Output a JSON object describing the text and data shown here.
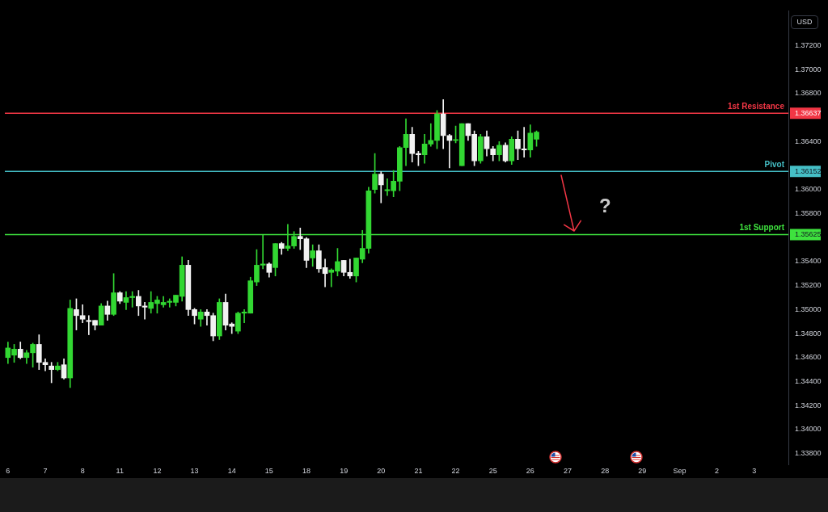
{
  "chart_data": {
    "type": "candlestick",
    "ylabel": "USD",
    "categories": [
      "6",
      null,
      null,
      null,
      null,
      null,
      "7",
      null,
      null,
      null,
      null,
      null,
      "8",
      null,
      null,
      null,
      null,
      null,
      "11",
      null,
      null,
      null,
      null,
      null,
      "12",
      null,
      null,
      null,
      null,
      null,
      "13",
      null,
      null,
      null,
      null,
      null,
      "14",
      null,
      null,
      null,
      null,
      null,
      "15",
      null,
      null,
      null,
      null,
      null,
      "18",
      null,
      null,
      null,
      null,
      null,
      "19",
      null,
      null,
      null,
      null,
      null,
      "20",
      null,
      null,
      null,
      null,
      null,
      "21",
      null,
      null,
      null,
      null,
      null,
      "22",
      null,
      null,
      null,
      null,
      null,
      "25",
      null,
      null,
      null,
      null,
      null,
      "26",
      null,
      null,
      null,
      null,
      null,
      "27",
      null,
      null,
      null,
      null,
      null,
      "28",
      null,
      null,
      null,
      null,
      null,
      "29",
      null,
      null,
      null,
      null,
      null,
      "Sep",
      null,
      null,
      null,
      null,
      null,
      "2",
      null,
      null,
      null,
      null,
      null,
      "3",
      null,
      null,
      null,
      null,
      null
    ],
    "ohlc": [
      [
        1.346,
        1.3473,
        1.3455,
        1.3468
      ],
      [
        1.3462,
        1.3471,
        1.3456,
        1.3467
      ],
      [
        1.3467,
        1.3473,
        1.3459,
        1.346
      ],
      [
        1.346,
        1.3466,
        1.3455,
        1.3464
      ],
      [
        1.3464,
        1.3472,
        1.3452,
        1.3471
      ],
      [
        1.3471,
        1.3479,
        1.345,
        1.3456
      ],
      [
        1.3456,
        1.3459,
        1.3449,
        1.3454
      ],
      [
        1.3453,
        1.3456,
        1.3439,
        1.345
      ],
      [
        1.345,
        1.3456,
        1.3449,
        1.3453
      ],
      [
        1.3454,
        1.3459,
        1.3442,
        1.3443
      ],
      [
        1.3443,
        1.3508,
        1.3435,
        1.3501
      ],
      [
        1.35,
        1.3509,
        1.3483,
        1.3495
      ],
      [
        1.3495,
        1.3504,
        1.3489,
        1.3492
      ],
      [
        1.3491,
        1.3495,
        1.3479,
        1.349
      ],
      [
        1.3491,
        1.3491,
        1.3483,
        1.3487
      ],
      [
        1.3487,
        1.3505,
        1.3487,
        1.3503
      ],
      [
        1.3503,
        1.3507,
        1.3491,
        1.3496
      ],
      [
        1.3496,
        1.353,
        1.3495,
        1.3514
      ],
      [
        1.3514,
        1.3515,
        1.3505,
        1.3507
      ],
      [
        1.3506,
        1.3515,
        1.35,
        1.351
      ],
      [
        1.351,
        1.3515,
        1.3502,
        1.3511
      ],
      [
        1.3511,
        1.3516,
        1.3495,
        1.3503
      ],
      [
        1.3503,
        1.3506,
        1.3492,
        1.3502
      ],
      [
        1.3501,
        1.3515,
        1.3497,
        1.3506
      ],
      [
        1.3505,
        1.3511,
        1.3497,
        1.3508
      ],
      [
        1.3504,
        1.3511,
        1.3502,
        1.3506
      ],
      [
        1.3506,
        1.3509,
        1.3502,
        1.3507
      ],
      [
        1.3506,
        1.3512,
        1.3503,
        1.3512
      ],
      [
        1.3511,
        1.3544,
        1.3507,
        1.3537
      ],
      [
        1.3537,
        1.3541,
        1.3495,
        1.35
      ],
      [
        1.35,
        1.3501,
        1.3488,
        1.3495
      ],
      [
        1.3492,
        1.35,
        1.3486,
        1.3498
      ],
      [
        1.3498,
        1.35,
        1.3487,
        1.3495
      ],
      [
        1.3495,
        1.3497,
        1.3474,
        1.3478
      ],
      [
        1.3478,
        1.3509,
        1.3475,
        1.3506
      ],
      [
        1.3506,
        1.3513,
        1.3483,
        1.3487
      ],
      [
        1.3488,
        1.3489,
        1.348,
        1.3486
      ],
      [
        1.3482,
        1.3498,
        1.348,
        1.3497
      ],
      [
        1.3497,
        1.35,
        1.3489,
        1.3498
      ],
      [
        1.3497,
        1.3527,
        1.3497,
        1.3524
      ],
      [
        1.3523,
        1.355,
        1.352,
        1.3537
      ],
      [
        1.3537,
        1.3562,
        1.3534,
        1.3538
      ],
      [
        1.3538,
        1.3539,
        1.3527,
        1.3531
      ],
      [
        1.3535,
        1.3555,
        1.3528,
        1.3555
      ],
      [
        1.3555,
        1.3556,
        1.3546,
        1.3551
      ],
      [
        1.3551,
        1.3571,
        1.3549,
        1.3553
      ],
      [
        1.3553,
        1.3565,
        1.3551,
        1.3561
      ],
      [
        1.3561,
        1.3568,
        1.355,
        1.3559
      ],
      [
        1.3559,
        1.356,
        1.3535,
        1.3541
      ],
      [
        1.3543,
        1.3554,
        1.3536,
        1.3549
      ],
      [
        1.3549,
        1.3554,
        1.3531,
        1.3534
      ],
      [
        1.3535,
        1.3542,
        1.3519,
        1.353
      ],
      [
        1.3531,
        1.3534,
        1.3519,
        1.3533
      ],
      [
        1.3532,
        1.3551,
        1.3528,
        1.354
      ],
      [
        1.3541,
        1.3541,
        1.3528,
        1.3531
      ],
      [
        1.3531,
        1.3542,
        1.3526,
        1.3528
      ],
      [
        1.3528,
        1.3543,
        1.3523,
        1.3543
      ],
      [
        1.3542,
        1.3566,
        1.3539,
        1.3551
      ],
      [
        1.3551,
        1.3602,
        1.3547,
        1.3599
      ],
      [
        1.36,
        1.363,
        1.3597,
        1.3613
      ],
      [
        1.3613,
        1.3615,
        1.3589,
        1.3604
      ],
      [
        1.3599,
        1.3609,
        1.3595,
        1.36
      ],
      [
        1.3599,
        1.3616,
        1.3594,
        1.3607
      ],
      [
        1.3607,
        1.3636,
        1.3599,
        1.3635
      ],
      [
        1.3635,
        1.3659,
        1.362,
        1.3646
      ],
      [
        1.3646,
        1.3652,
        1.3623,
        1.363
      ],
      [
        1.363,
        1.3632,
        1.362,
        1.3629
      ],
      [
        1.3629,
        1.3646,
        1.3622,
        1.3638
      ],
      [
        1.3638,
        1.3655,
        1.3636,
        1.3641
      ],
      [
        1.3641,
        1.3666,
        1.3634,
        1.3663
      ],
      [
        1.3663,
        1.3675,
        1.3634,
        1.3645
      ],
      [
        1.3645,
        1.3646,
        1.3618,
        1.3641
      ],
      [
        1.3641,
        1.3653,
        1.3639,
        1.3641
      ],
      [
        1.362,
        1.3655,
        1.362,
        1.3655
      ],
      [
        1.3655,
        1.3655,
        1.3641,
        1.3645
      ],
      [
        1.3646,
        1.3649,
        1.362,
        1.3624
      ],
      [
        1.3624,
        1.3646,
        1.3622,
        1.3644
      ],
      [
        1.3644,
        1.3649,
        1.3628,
        1.3634
      ],
      [
        1.3634,
        1.3636,
        1.3624,
        1.3629
      ],
      [
        1.3629,
        1.364,
        1.3624,
        1.3637
      ],
      [
        1.3637,
        1.3639,
        1.3623,
        1.3624
      ],
      [
        1.3624,
        1.3644,
        1.3621,
        1.3642
      ],
      [
        1.3642,
        1.3649,
        1.3625,
        1.3634
      ],
      [
        1.3634,
        1.3652,
        1.3627,
        1.3633
      ],
      [
        1.3633,
        1.3654,
        1.3627,
        1.3647
      ],
      [
        1.3642,
        1.3649,
        1.3636,
        1.3648
      ],
      null,
      null,
      null,
      null,
      null,
      null,
      null,
      null,
      null,
      null,
      null,
      null,
      null,
      null,
      null,
      null,
      null,
      null,
      null,
      null,
      null,
      null,
      null,
      null,
      null,
      null,
      null,
      null,
      null,
      null,
      null,
      null,
      null,
      null,
      null,
      null,
      null,
      null,
      null,
      null
    ],
    "colors": [
      "#32d732",
      "#32d732",
      "#f2f2f2",
      "#32d732",
      "#32d732",
      "#f2f2f2",
      "#f2f2f2",
      "#f2f2f2",
      "#32d732",
      "#f2f2f2",
      "#32d732",
      "#f2f2f2",
      "#f2f2f2",
      "#f2f2f2",
      "#f2f2f2",
      "#32d732",
      "#f2f2f2",
      "#32d732",
      "#f2f2f2",
      "#32d732",
      "#32d732",
      "#f2f2f2",
      "#f2f2f2",
      "#32d732",
      "#32d732",
      "#32d732",
      "#32d732",
      "#32d732",
      "#32d732",
      "#f2f2f2",
      "#f2f2f2",
      "#32d732",
      "#f2f2f2",
      "#f2f2f2",
      "#32d732",
      "#f2f2f2",
      "#f2f2f2",
      "#32d732",
      "#32d732",
      "#32d732",
      "#32d732",
      "#32d732",
      "#f2f2f2",
      "#32d732",
      "#f2f2f2",
      "#32d732",
      "#32d732",
      "#f2f2f2",
      "#f2f2f2",
      "#32d732",
      "#f2f2f2",
      "#f2f2f2",
      "#32d732",
      "#32d732",
      "#f2f2f2",
      "#f2f2f2",
      "#32d732",
      "#32d732",
      "#32d732",
      "#32d732",
      "#f2f2f2",
      "#32d732",
      "#32d732",
      "#32d732",
      "#32d732",
      "#f2f2f2",
      "#f2f2f2",
      "#32d732",
      "#32d732",
      "#32d732",
      "#f2f2f2",
      "#f2f2f2",
      "#32d732",
      "#32d732",
      "#f2f2f2",
      "#f2f2f2",
      "#32d732",
      "#f2f2f2",
      "#f2f2f2",
      "#32d732",
      "#f2f2f2",
      "#32d732",
      "#f2f2f2",
      "#f2f2f2",
      "#32d732",
      "#32d732",
      null,
      null,
      null,
      null,
      null,
      null,
      null,
      null,
      null,
      null,
      null,
      null,
      null,
      null,
      null,
      null,
      null,
      null,
      null,
      null,
      null,
      null,
      null,
      null,
      null,
      null,
      null,
      null,
      null,
      null,
      null,
      null,
      null,
      null,
      null,
      null,
      null,
      null,
      null,
      null
    ],
    "ylim": [
      1.3371,
      1.3749
    ],
    "yticks": [
      {
        "value": 1.338,
        "label": "1.33800"
      },
      {
        "value": 1.34,
        "label": "1.34000"
      },
      {
        "value": 1.342,
        "label": "1.34200"
      },
      {
        "value": 1.344,
        "label": "1.34400"
      },
      {
        "value": 1.346,
        "label": "1.34600"
      },
      {
        "value": 1.348,
        "label": "1.34800"
      },
      {
        "value": 1.35,
        "label": "1.35000"
      },
      {
        "value": 1.352,
        "label": "1.35200"
      },
      {
        "value": 1.354,
        "label": "1.35400"
      },
      1.35625,
      {
        "value": 1.358,
        "label": "1.35800"
      },
      {
        "value": 1.36,
        "label": "1.36000"
      },
      1.36152,
      {
        "value": 1.364,
        "label": "1.36400"
      },
      1.36637,
      {
        "value": 1.368,
        "label": "1.36800"
      },
      {
        "value": 1.37,
        "label": "1.37000"
      },
      {
        "value": 1.372,
        "label": "1.37200"
      }
    ],
    "ref_lines": [
      {
        "axis": "y",
        "value": 1.36637,
        "label": "1st Resistance",
        "color": "#f23645"
      },
      {
        "axis": "y",
        "value": 1.36152,
        "label": "Pivot",
        "color": "#45bfc6"
      },
      {
        "axis": "y",
        "value": 1.35625,
        "label": "1st Support",
        "color": "#3ee23e"
      }
    ],
    "annotations": [
      "?"
    ]
  }
}
